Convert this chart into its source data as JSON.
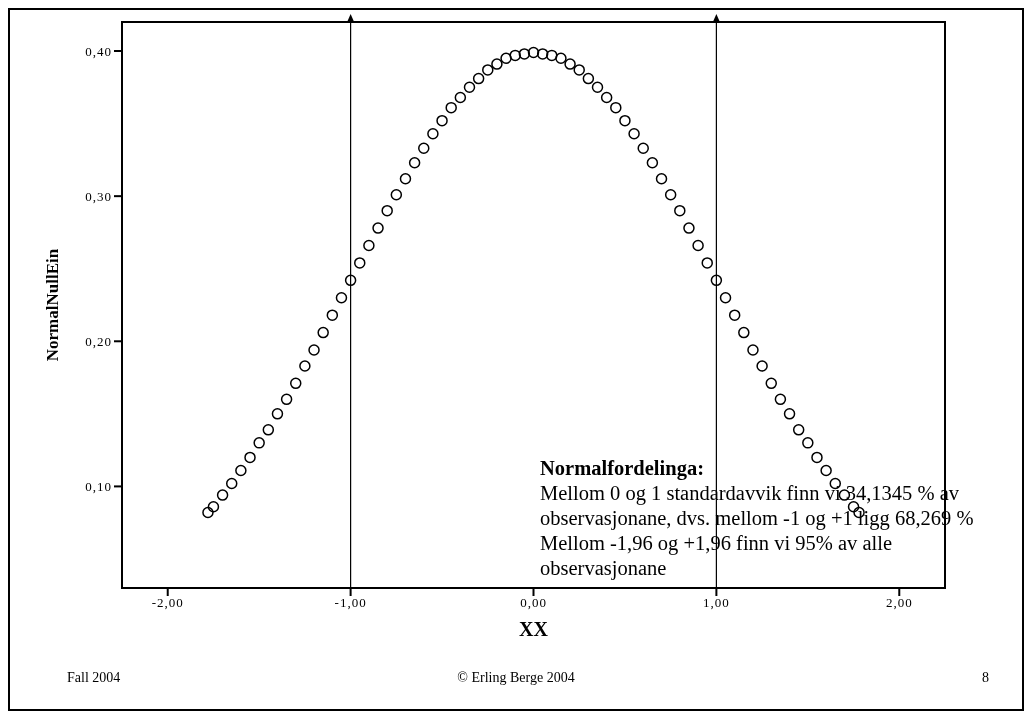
{
  "chart_data": {
    "type": "scatter",
    "xlabel": "XX",
    "ylabel": "NormalNullEin",
    "annotations": [
      "Normalfordelinga:",
      "Mellom 0 og 1 standardavvik finn vi 34,1345 % av observasjonane, dvs. mellom -1 og +1 ligg 68,269 %",
      "Mellom -1,96 og +1,96 finn vi 95% av alle observasjonane",
      "Fall 2004",
      "© Erling Berge 2004",
      "8"
    ],
    "x": [
      -1.78,
      -1.75,
      -1.7,
      -1.65,
      -1.6,
      -1.55,
      -1.5,
      -1.45,
      -1.4,
      -1.35,
      -1.3,
      -1.25,
      -1.2,
      -1.15,
      -1.1,
      -1.05,
      -1.0,
      -0.95,
      -0.9,
      -0.85,
      -0.8,
      -0.75,
      -0.7,
      -0.65,
      -0.6,
      -0.55,
      -0.5,
      -0.45,
      -0.4,
      -0.35,
      -0.3,
      -0.25,
      -0.2,
      -0.15,
      -0.1,
      -0.05,
      0.0,
      0.05,
      0.1,
      0.15,
      0.2,
      0.25,
      0.3,
      0.35,
      0.4,
      0.45,
      0.5,
      0.55,
      0.6,
      0.65,
      0.7,
      0.75,
      0.8,
      0.85,
      0.9,
      0.95,
      1.0,
      1.05,
      1.1,
      1.15,
      1.2,
      1.25,
      1.3,
      1.35,
      1.4,
      1.45,
      1.5,
      1.55,
      1.6,
      1.65,
      1.7,
      1.75,
      1.78
    ],
    "series": [
      {
        "color": "#000000",
        "values": [
          0.082,
          0.086,
          0.094,
          0.102,
          0.111,
          0.12,
          0.13,
          0.139,
          0.15,
          0.16,
          0.171,
          0.183,
          0.194,
          0.206,
          0.218,
          0.23,
          0.242,
          0.254,
          0.266,
          0.278,
          0.29,
          0.301,
          0.312,
          0.323,
          0.333,
          0.343,
          0.352,
          0.361,
          0.368,
          0.375,
          0.381,
          0.387,
          0.391,
          0.395,
          0.397,
          0.398,
          0.399,
          0.398,
          0.397,
          0.395,
          0.391,
          0.387,
          0.381,
          0.375,
          0.368,
          0.361,
          0.352,
          0.343,
          0.333,
          0.323,
          0.312,
          0.301,
          0.29,
          0.278,
          0.266,
          0.254,
          0.242,
          0.23,
          0.218,
          0.206,
          0.194,
          0.183,
          0.171,
          0.16,
          0.15,
          0.139,
          0.13,
          0.12,
          0.111,
          0.102,
          0.094,
          0.086,
          0.082
        ]
      }
    ],
    "marker": "circle",
    "xlim": [
      -2.25,
      2.25
    ],
    "xticks": [
      {
        "value": -2,
        "label": "-2,00"
      },
      {
        "value": -1,
        "label": "-1,00"
      },
      {
        "value": 0,
        "label": "0,00"
      },
      {
        "value": 1,
        "label": "1,00"
      },
      {
        "value": 2,
        "label": "2,00"
      }
    ],
    "ylim": [
      0.03,
      0.42
    ],
    "yticks": [
      {
        "value": 0.1,
        "label": "0,10"
      },
      {
        "value": 0.2,
        "label": "0,20"
      },
      {
        "value": 0.3,
        "label": "0,30"
      },
      {
        "value": 0.4,
        "label": "0,40"
      }
    ],
    "ref_lines": [
      {
        "axis": "x",
        "value": -1,
        "color": "#000000"
      },
      {
        "axis": "x",
        "value": 1,
        "color": "#000000"
      }
    ],
    "grid": false,
    "legend": false
  }
}
